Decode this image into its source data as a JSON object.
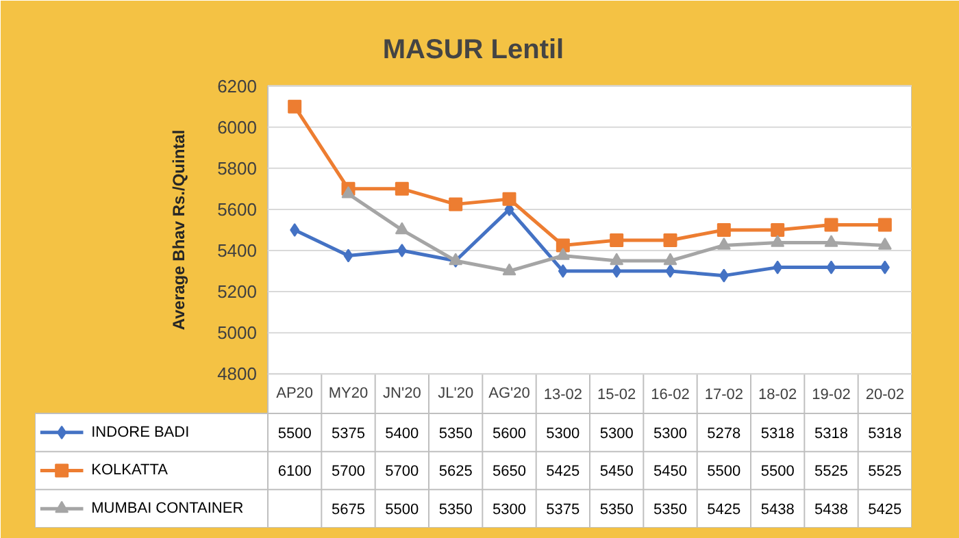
{
  "chart_data": {
    "type": "line",
    "title": "MASUR Lentil",
    "ylabel": "Average Bhav Rs./Quintal",
    "categories": [
      "AP20",
      "MY20",
      "JN'20",
      "JL'20",
      "AG'20",
      "13-02",
      "15-02",
      "16-02",
      "17-02",
      "18-02",
      "19-02",
      "20-02"
    ],
    "series": [
      {
        "name": "INDORE BADI",
        "color": "#4472c4",
        "marker": "diamond",
        "values": [
          5500,
          5375,
          5400,
          5350,
          5600,
          5300,
          5300,
          5300,
          5278,
          5318,
          5318,
          5318
        ]
      },
      {
        "name": "KOLKATTA",
        "color": "#ed7d31",
        "marker": "square",
        "values": [
          6100,
          5700,
          5700,
          5625,
          5650,
          5425,
          5450,
          5450,
          5500,
          5500,
          5525,
          5525
        ]
      },
      {
        "name": "MUMBAI CONTAINER",
        "color": "#a5a5a5",
        "marker": "triangle",
        "values": [
          null,
          5675,
          5500,
          5350,
          5300,
          5375,
          5350,
          5350,
          5425,
          5438,
          5438,
          5425
        ]
      }
    ],
    "ylim": [
      4800,
      6200
    ],
    "yticks": [
      4800,
      5000,
      5200,
      5400,
      5600,
      5800,
      6000,
      6200
    ],
    "grid": "y",
    "data_labels": true,
    "legend": "bottom",
    "line_style": "solid"
  }
}
